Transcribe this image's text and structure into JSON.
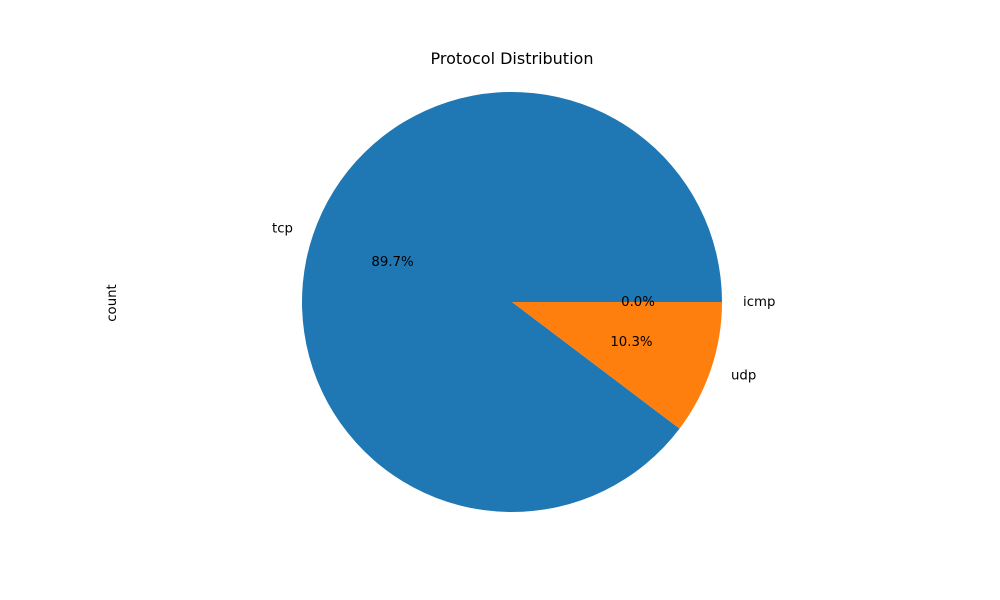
{
  "chart_data": {
    "type": "pie",
    "title": "Protocol Distribution",
    "ylabel": "count",
    "start_angle_deg": 0,
    "direction": "counterclockwise",
    "slices": [
      {
        "label": "tcp",
        "value": 89.7,
        "pct_label": "89.7%",
        "color": "#1f77b4"
      },
      {
        "label": "udp",
        "value": 10.3,
        "pct_label": "10.3%",
        "color": "#ff7f0e"
      },
      {
        "label": "icmp",
        "value": 0.0,
        "pct_label": "0.0%",
        "color": "#2ca02c"
      }
    ]
  }
}
